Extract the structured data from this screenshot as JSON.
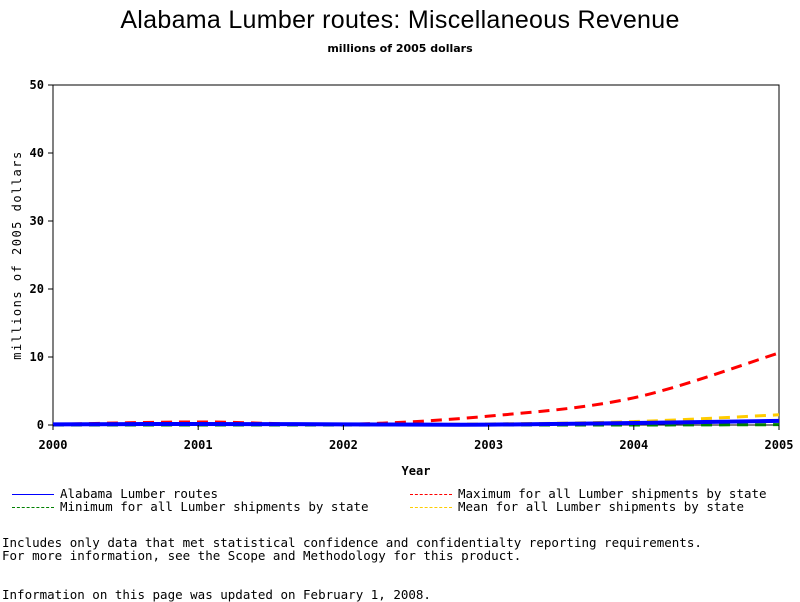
{
  "chart_data": {
    "type": "line",
    "title": "Alabama Lumber routes: Miscellaneous Revenue",
    "subtitle": "millions of 2005 dollars",
    "xlabel": "Year",
    "ylabel": "millions of 2005 dollars",
    "xlim": [
      2000,
      2005
    ],
    "ylim": [
      0,
      50
    ],
    "x_ticks": [
      "2000",
      "2001",
      "2002",
      "2003",
      "2004",
      "2005"
    ],
    "y_ticks": [
      "0",
      "10",
      "20",
      "30",
      "40",
      "50"
    ],
    "grid": false,
    "legend_position": "bottom",
    "x": [
      2000,
      2001,
      2002,
      2003,
      2004,
      2005
    ],
    "series": [
      {
        "name": "Alabama Lumber routes",
        "values": [
          0.1,
          0.15,
          0.1,
          0.05,
          0.3,
          0.6
        ],
        "color": "#0000ff",
        "style": "solid"
      },
      {
        "name": "Maximum for all Lumber shipments by state",
        "values": [
          0.1,
          0.45,
          0.1,
          1.3,
          4.0,
          10.6
        ],
        "color": "#ff0000",
        "style": "dashed"
      },
      {
        "name": "Minimum for all Lumber shipments by state",
        "values": [
          0.0,
          0.0,
          0.0,
          0.0,
          0.0,
          0.05
        ],
        "color": "#008000",
        "style": "dashed"
      },
      {
        "name": "Mean for all Lumber shipments by state",
        "values": [
          0.05,
          0.1,
          0.05,
          0.15,
          0.5,
          1.5
        ],
        "color": "#ffcc00",
        "style": "dashed"
      }
    ]
  },
  "notes": [
    "Includes only data that met statistical confidence and confidentialty reporting requirements.",
    "For more information, see the Scope and Methodology for this product.",
    "Information on this page was updated on February 1, 2008."
  ]
}
